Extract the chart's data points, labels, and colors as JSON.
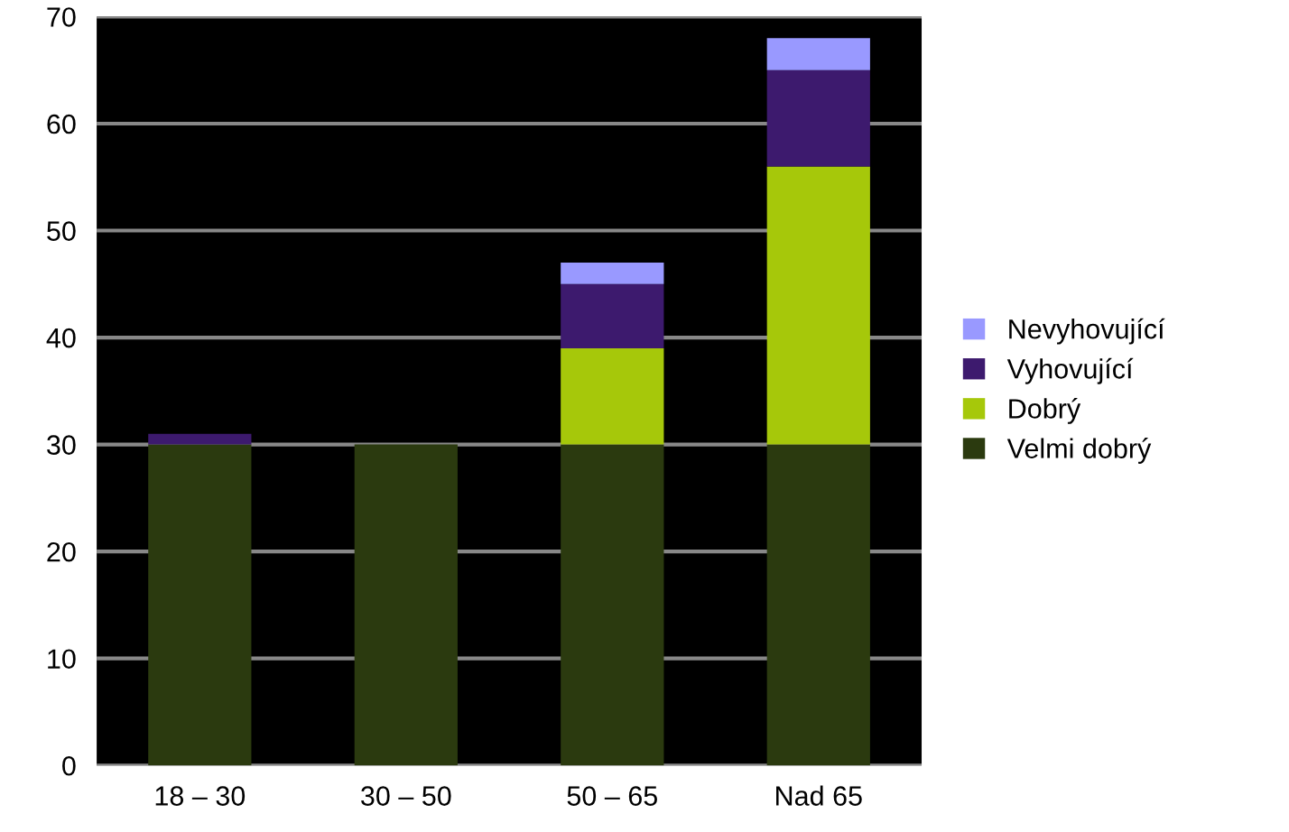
{
  "chart_data": {
    "type": "bar",
    "stacked": true,
    "categories": [
      "18 – 30",
      "30 – 50",
      "50 – 65",
      "Nad 65"
    ],
    "series": [
      {
        "name": "Velmi dobrý",
        "color": "#2b3a0f",
        "values": [
          30,
          30,
          30,
          30
        ]
      },
      {
        "name": "Dobrý",
        "color": "#a6c80a",
        "values": [
          0,
          0,
          9,
          26
        ]
      },
      {
        "name": "Vyhovující",
        "color": "#3d1a6e",
        "values": [
          1,
          0,
          6,
          9
        ]
      },
      {
        "name": "Nevyhovující",
        "color": "#9999ff",
        "values": [
          0,
          0,
          2,
          3
        ]
      }
    ],
    "ylim": [
      0,
      70
    ],
    "yticks": [
      0,
      10,
      20,
      30,
      40,
      50,
      60,
      70
    ],
    "grid": "y",
    "legend": "right"
  }
}
